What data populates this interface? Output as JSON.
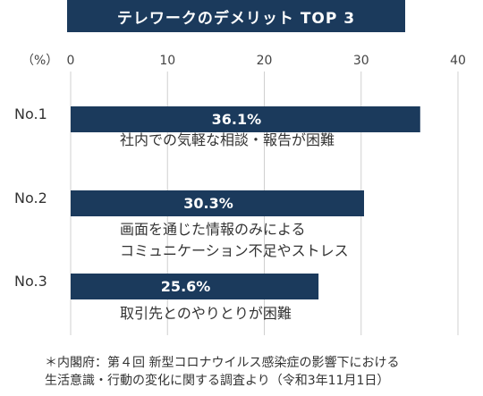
{
  "chart_data": {
    "type": "bar",
    "orientation": "horizontal",
    "title": "テレワークのデメリット TOP 3",
    "unit_label": "（%）",
    "xlim": [
      0,
      40
    ],
    "ticks": [
      "0",
      "10",
      "20",
      "30",
      "40"
    ],
    "grid": true,
    "bar_color": "#1b3a5c",
    "categories": [
      "No.1",
      "No.2",
      "No.3"
    ],
    "values": [
      36.1,
      30.3,
      25.6
    ],
    "value_labels": [
      "36.1%",
      "30.3%",
      "25.6%"
    ],
    "descriptions": [
      [
        "社内での気軽な相談・報告が困難"
      ],
      [
        "画面を通じた情報のみによる",
        "コミュニケーション不足やストレス"
      ],
      [
        "取引先とのやりとりが困難"
      ]
    ]
  },
  "footnote": {
    "line1": "＊内閣府：第４回 新型コロナウイルス感染症の影響下における",
    "line2": "生活意識・行動の変化に関する調査より（令和3年11月1日）"
  }
}
